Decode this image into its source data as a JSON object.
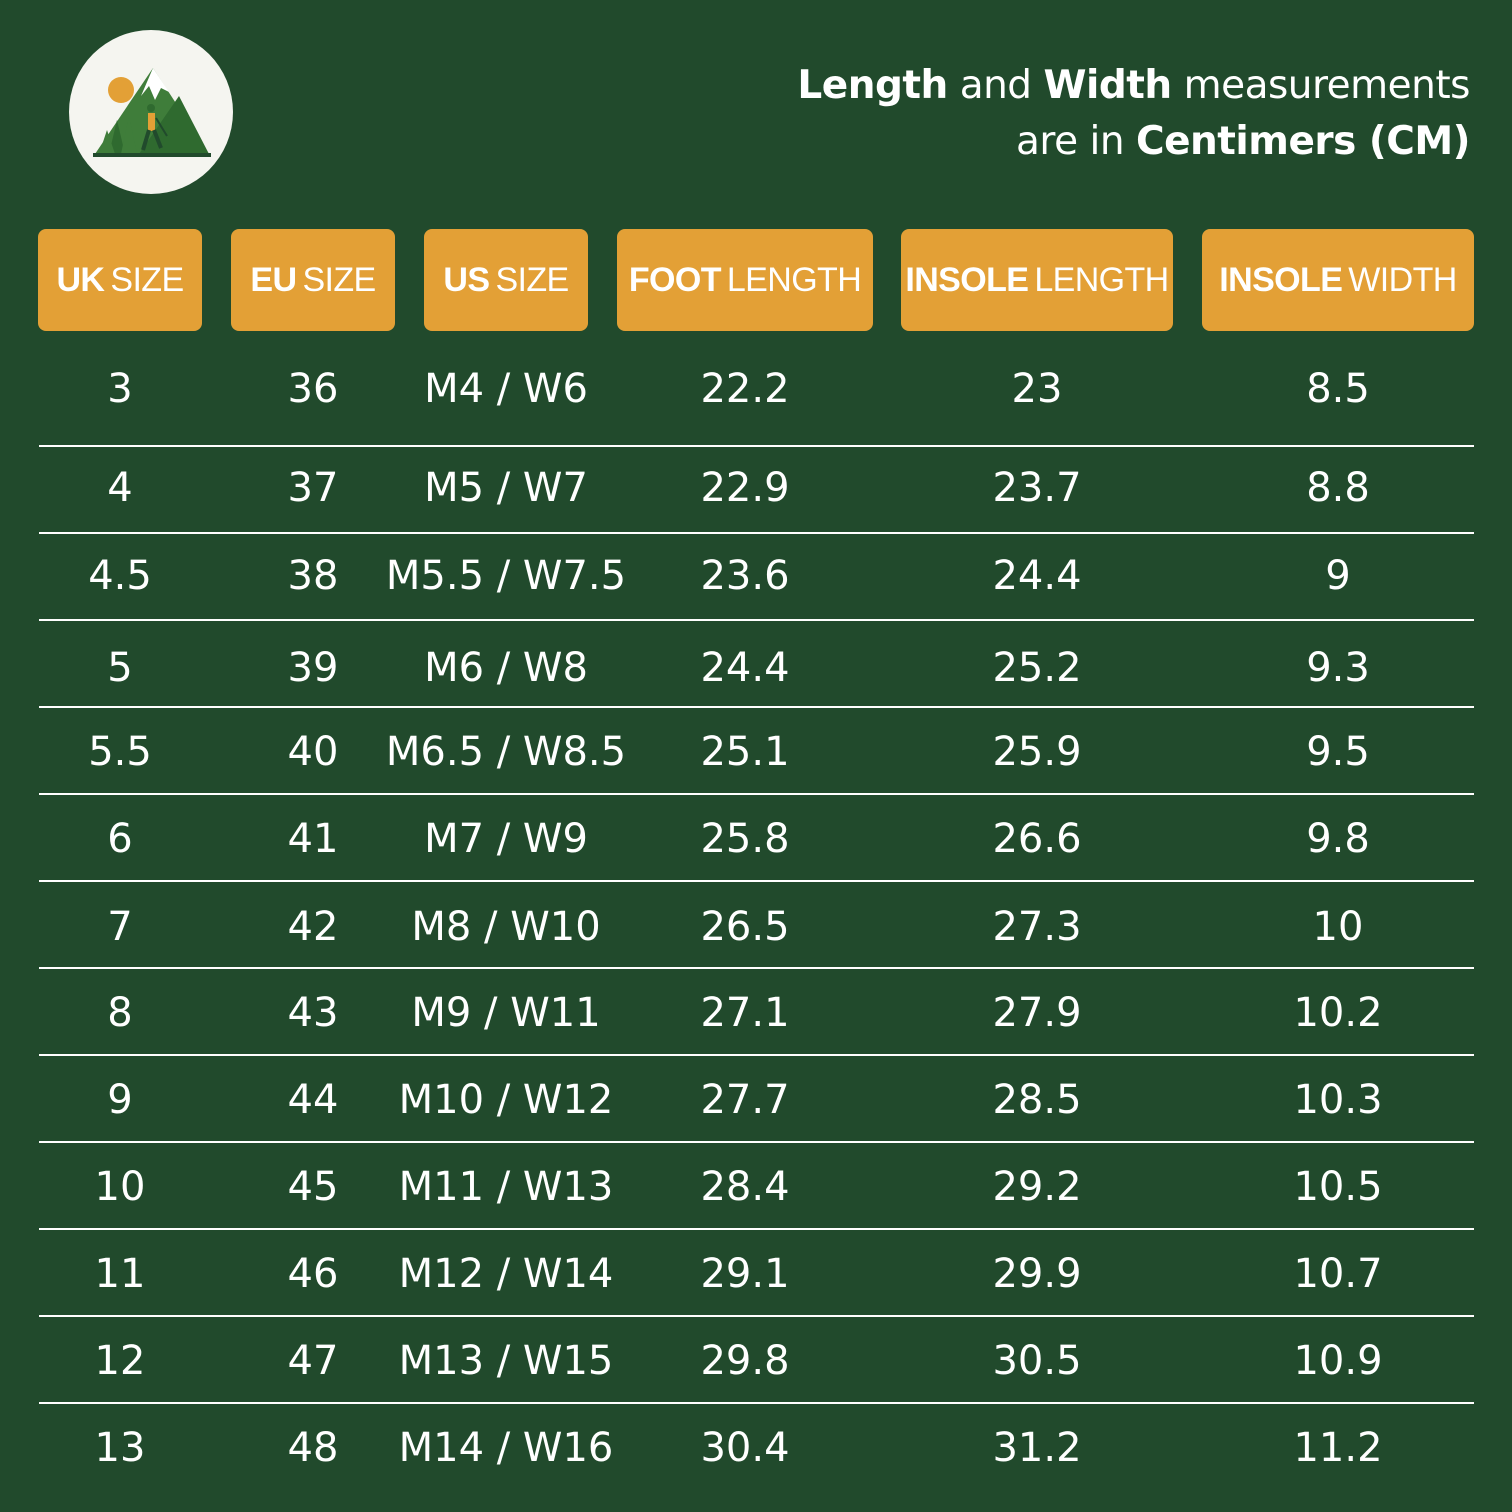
{
  "brand": {
    "logo_icon": "mountain-hiker-logo-icon"
  },
  "note": {
    "bold_1": "Length",
    "text_1": " and ",
    "bold_2": "Width",
    "text_2": " measurements",
    "text_3": "are in ",
    "bold_3": "Centimers (CM)"
  },
  "columns": [
    {
      "bold": "UK",
      "light": "SIZE"
    },
    {
      "bold": "EU",
      "light": "SIZE"
    },
    {
      "bold": "US",
      "light": "SIZE"
    },
    {
      "bold": "FOOT",
      "light": "LENGTH"
    },
    {
      "bold": "INSOLE",
      "light": "LENGTH"
    },
    {
      "bold": "INSOLE",
      "light": "WIDTH"
    }
  ],
  "rows": [
    {
      "uk": "3",
      "eu": "36",
      "us": "M4 / W6",
      "foot": "22.2",
      "insole_length": "23",
      "insole_width": "8.5"
    },
    {
      "uk": "4",
      "eu": "37",
      "us": "M5 / W7",
      "foot": "22.9",
      "insole_length": "23.7",
      "insole_width": "8.8"
    },
    {
      "uk": "4.5",
      "eu": "38",
      "us": "M5.5 / W7.5",
      "foot": "23.6",
      "insole_length": "24.4",
      "insole_width": "9"
    },
    {
      "uk": "5",
      "eu": "39",
      "us": "M6 / W8",
      "foot": "24.4",
      "insole_length": "25.2",
      "insole_width": "9.3"
    },
    {
      "uk": "5.5",
      "eu": "40",
      "us": "M6.5 / W8.5",
      "foot": "25.1",
      "insole_length": "25.9",
      "insole_width": "9.5"
    },
    {
      "uk": "6",
      "eu": "41",
      "us": "M7 / W9",
      "foot": "25.8",
      "insole_length": "26.6",
      "insole_width": "9.8"
    },
    {
      "uk": "7",
      "eu": "42",
      "us": "M8 / W10",
      "foot": "26.5",
      "insole_length": "27.3",
      "insole_width": "10"
    },
    {
      "uk": "8",
      "eu": "43",
      "us": "M9 / W11",
      "foot": "27.1",
      "insole_length": "27.9",
      "insole_width": "10.2"
    },
    {
      "uk": "9",
      "eu": "44",
      "us": "M10 / W12",
      "foot": "27.7",
      "insole_length": "28.5",
      "insole_width": "10.3"
    },
    {
      "uk": "10",
      "eu": "45",
      "us": "M11 / W13",
      "foot": "28.4",
      "insole_length": "29.2",
      "insole_width": "10.5"
    },
    {
      "uk": "11",
      "eu": "46",
      "us": "M12 / W14",
      "foot": "29.1",
      "insole_length": "29.9",
      "insole_width": "10.7"
    },
    {
      "uk": "12",
      "eu": "47",
      "us": "M13 / W15",
      "foot": "29.8",
      "insole_length": "30.5",
      "insole_width": "10.9"
    },
    {
      "uk": "13",
      "eu": "48",
      "us": "M14 / W16",
      "foot": "30.4",
      "insole_length": "31.2",
      "insole_width": "11.2"
    }
  ],
  "colors": {
    "background": "#214a2c",
    "header": "#e3a036",
    "text": "#ffffff"
  }
}
